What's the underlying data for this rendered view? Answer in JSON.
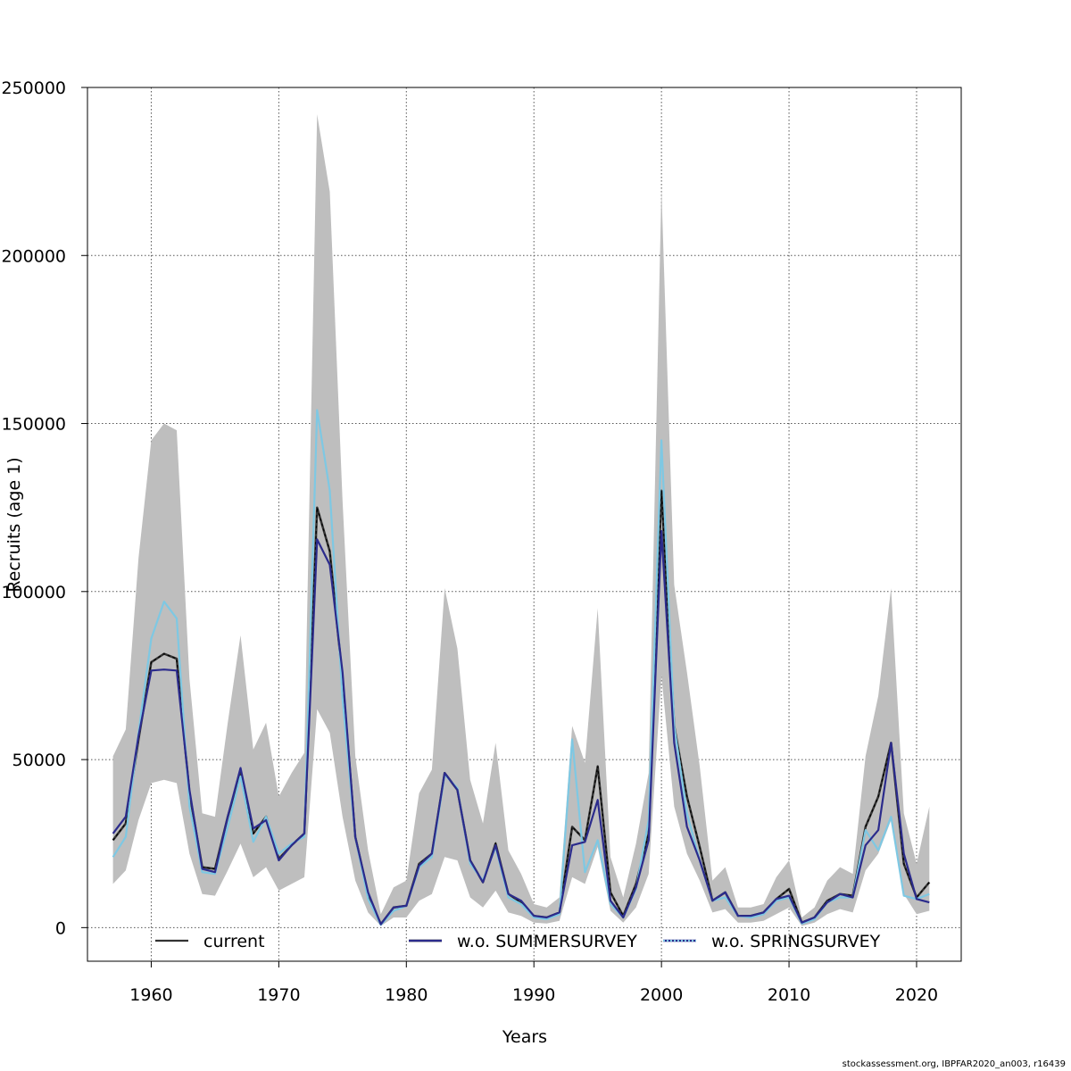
{
  "footer": "stockassessment.org, IBPFAR2020_an003, r16439",
  "chart_data": {
    "type": "line",
    "title": "",
    "xlabel": "Years",
    "ylabel": "Recruits (age 1)",
    "xlim": [
      1955,
      2023.5
    ],
    "ylim": [
      -10000,
      250000
    ],
    "xticks": [
      1960,
      1970,
      1980,
      1990,
      2000,
      2010,
      2020
    ],
    "yticks": [
      0,
      50000,
      100000,
      150000,
      200000,
      250000
    ],
    "grid": true,
    "legend_position": "bottom",
    "colors": {
      "band": "#bebebe",
      "current": "#333333",
      "summer": "#2b2b8c",
      "spring": "#7ec8e3"
    },
    "x": [
      1957,
      1958,
      1959,
      1960,
      1961,
      1962,
      1963,
      1964,
      1965,
      1966,
      1967,
      1968,
      1969,
      1970,
      1971,
      1972,
      1973,
      1974,
      1975,
      1976,
      1977,
      1978,
      1979,
      1980,
      1981,
      1982,
      1983,
      1984,
      1985,
      1986,
      1987,
      1988,
      1989,
      1990,
      1991,
      1992,
      1993,
      1994,
      1995,
      1996,
      1997,
      1998,
      1999,
      2000,
      2001,
      2002,
      2003,
      2004,
      2005,
      2006,
      2007,
      2008,
      2009,
      2010,
      2011,
      2012,
      2013,
      2014,
      2015,
      2016,
      2017,
      2018,
      2019,
      2020,
      2021
    ],
    "band": {
      "name": "confidence interval",
      "upper": [
        51000,
        59000,
        110000,
        145000,
        150000,
        148000,
        74000,
        34000,
        33000,
        61000,
        87000,
        53000,
        61000,
        39000,
        46000,
        52000,
        242000,
        219000,
        127000,
        51000,
        23000,
        4000,
        12000,
        14000,
        40000,
        47000,
        101000,
        83000,
        44000,
        31000,
        55000,
        23000,
        16000,
        7000,
        6000,
        9000,
        60000,
        49000,
        95000,
        21000,
        9000,
        25000,
        46000,
        220000,
        102000,
        76000,
        48000,
        14000,
        18000,
        6000,
        6000,
        7000,
        15000,
        20000,
        3000,
        6000,
        14000,
        18000,
        16000,
        51000,
        69000,
        101000,
        34000,
        19000,
        36000
      ],
      "lower": [
        13000,
        17000,
        32000,
        43000,
        44000,
        43000,
        22000,
        10000,
        9500,
        17000,
        25000,
        15000,
        18000,
        11000,
        13000,
        15000,
        65000,
        58000,
        33000,
        14000,
        4500,
        500,
        3000,
        3000,
        8000,
        10000,
        21000,
        20000,
        9000,
        6000,
        11000,
        4500,
        3500,
        1500,
        1200,
        2000,
        15000,
        13000,
        24000,
        5000,
        1500,
        6000,
        16000,
        75000,
        36000,
        22000,
        14000,
        4500,
        5500,
        1500,
        1500,
        2000,
        4000,
        6000,
        500,
        1500,
        4000,
        5500,
        4500,
        17000,
        22000,
        32000,
        10000,
        4000,
        5000
      ]
    },
    "series": [
      {
        "name": "current",
        "values": [
          26000,
          31000,
          56000,
          79000,
          81500,
          80000,
          40000,
          18000,
          17500,
          33000,
          46500,
          28000,
          33000,
          20500,
          24500,
          28000,
          125000,
          112000,
          74000,
          27000,
          10000,
          1000,
          6000,
          6500,
          19000,
          22000,
          46000,
          41000,
          20000,
          13500,
          25000,
          10000,
          7500,
          3500,
          3000,
          4500,
          30000,
          26000,
          48000,
          10500,
          3500,
          13000,
          28000,
          130000,
          60000,
          39000,
          24000,
          8000,
          10500,
          3500,
          3500,
          4500,
          8500,
          11500,
          1500,
          3000,
          8000,
          10000,
          9500,
          30000,
          39000,
          55000,
          19000,
          9000,
          13500
        ]
      },
      {
        "name": "w.o. SUMMERSURVEY",
        "values": [
          28000,
          33000,
          57000,
          76500,
          76800,
          76500,
          41000,
          17500,
          16500,
          33000,
          47500,
          29500,
          32000,
          20000,
          24500,
          28000,
          115500,
          108000,
          76000,
          27000,
          10500,
          1000,
          6000,
          6500,
          18500,
          22000,
          46000,
          41000,
          20000,
          13500,
          24500,
          10000,
          8000,
          3500,
          3000,
          4500,
          24500,
          25500,
          38000,
          8000,
          3000,
          12000,
          26000,
          118000,
          55000,
          30000,
          20000,
          8000,
          10500,
          3500,
          3500,
          4500,
          8500,
          9500,
          1500,
          3000,
          7500,
          10000,
          9000,
          24500,
          29000,
          55000,
          22000,
          8500,
          7500
        ]
      },
      {
        "name": "w.o. SPRINGSURVEY",
        "values": [
          21000,
          27000,
          58000,
          86000,
          97000,
          92000,
          36000,
          16500,
          16000,
          30000,
          45000,
          25500,
          33000,
          22000,
          25000,
          27000,
          154000,
          130000,
          68000,
          27000,
          8500,
          800,
          5000,
          6500,
          18000,
          21000,
          45500,
          41500,
          19000,
          14000,
          24000,
          9000,
          7000,
          3000,
          2500,
          4000,
          56000,
          16500,
          26000,
          7000,
          3000,
          11500,
          32000,
          145000,
          60000,
          34000,
          20000,
          8000,
          9000,
          3500,
          3000,
          4000,
          8000,
          9000,
          1200,
          2500,
          7500,
          9000,
          9000,
          29000,
          23000,
          33000,
          9500,
          8500,
          10000
        ]
      }
    ]
  }
}
